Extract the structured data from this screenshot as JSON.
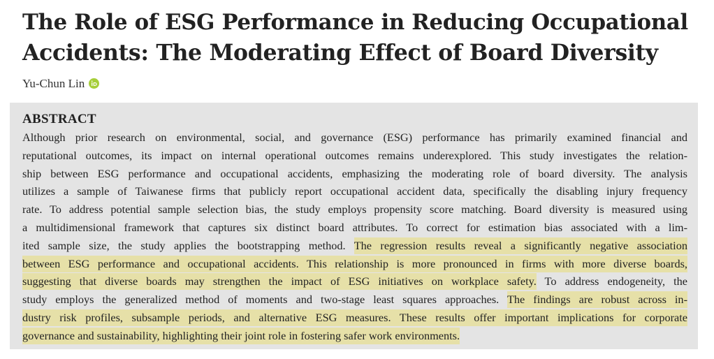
{
  "paper": {
    "title_line1": "The Role of ESG Performance in Reducing Occupational",
    "title_line2": "Accidents: The Moderating Effect of Board Diversity",
    "author": "Yu-Chun Lin",
    "orcid_icon": "orcid-icon",
    "orcid_color": "#a6ce39",
    "highlight_color": "#e6e0a8",
    "abstract_bg": "#e4e4e4"
  },
  "abstract": {
    "heading": "ABSTRACT",
    "l1": "Although prior research on environmental, social, and governance (ESG) performance has primarily examined financial and",
    "l2": "reputational outcomes, its impact on internal operational outcomes remains underexplored. This study investigates the relation-",
    "l3": "ship between ESG performance and occupational accidents, emphasizing the moderating role of board diversity. The analysis",
    "l4": "utilizes a sample of Taiwanese firms that publicly report occupational accident data, specifically the disabling injury frequency",
    "l5": "rate. To address potential sample selection bias, the study employs propensity score matching. Board diversity is measured using",
    "l6": "a multidimensional framework that captures six distinct board attributes. To correct for estimation bias associated with a lim-",
    "l7a": "ited sample size, the study applies the bootstrapping method. ",
    "l7b": "The regression results reveal a significantly negative association",
    "l8": "between ESG performance and occupational accidents. This relationship is more pronounced in firms with more diverse boards,",
    "l9a": "suggesting that diverse boards may strengthen the impact of ESG initiatives on workplace safety.",
    "l9b": " To address endogeneity, the",
    "l10a": "study employs the generalized method of moments and two-stage least squares approaches. ",
    "l10b": "The findings are robust across in-",
    "l11": "dustry risk profiles, subsample periods, and alternative ESG measures. These results offer important implications for corporate",
    "l12": "governance and sustainability, highlighting their joint role in fostering safer work environments."
  }
}
